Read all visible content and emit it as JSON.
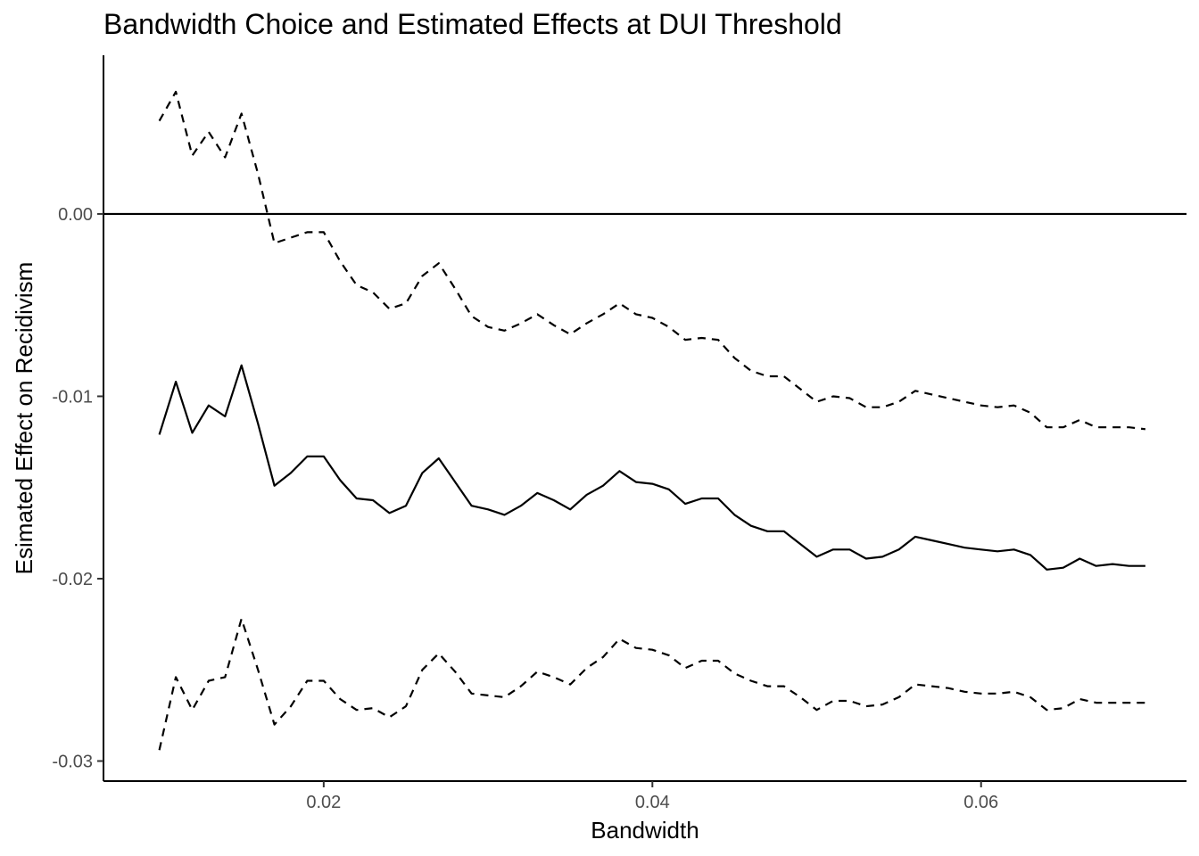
{
  "chart_data": {
    "type": "line",
    "title": "Bandwidth Choice and Estimated Effects at DUI Threshold",
    "xlabel": "Bandwidth",
    "ylabel": "Esimated Effect on Recidivism",
    "xlim": [
      0.0066,
      0.0725
    ],
    "ylim": [
      -0.0311,
      0.0087
    ],
    "x_ticks": [
      0.02,
      0.04,
      0.06
    ],
    "x_tick_labels": [
      "0.02",
      "0.04",
      "0.06"
    ],
    "y_ticks": [
      -0.03,
      -0.02,
      -0.01,
      0.0
    ],
    "y_tick_labels": [
      "-0.03",
      "-0.02",
      "-0.01",
      "0.00"
    ],
    "reference_line_y": 0,
    "grid": false,
    "x": [
      0.01,
      0.011,
      0.012,
      0.013,
      0.014,
      0.015,
      0.016,
      0.017,
      0.018,
      0.019,
      0.02,
      0.021,
      0.022,
      0.023,
      0.024,
      0.025,
      0.026,
      0.027,
      0.028,
      0.029,
      0.03,
      0.031,
      0.032,
      0.033,
      0.034,
      0.035,
      0.036,
      0.037,
      0.038,
      0.039,
      0.04,
      0.041,
      0.042,
      0.043,
      0.044,
      0.045,
      0.046,
      0.047,
      0.048,
      0.049,
      0.05,
      0.051,
      0.052,
      0.053,
      0.054,
      0.055,
      0.056,
      0.057,
      0.058,
      0.059,
      0.06,
      0.061,
      0.062,
      0.063,
      0.064,
      0.065,
      0.066,
      0.067,
      0.068,
      0.069,
      0.07
    ],
    "series": [
      {
        "style": "solid",
        "values": [
          -0.0121,
          -0.0092,
          -0.012,
          -0.0105,
          -0.0111,
          -0.0083,
          -0.0115,
          -0.0149,
          -0.0142,
          -0.0133,
          -0.0133,
          -0.0146,
          -0.0156,
          -0.0157,
          -0.0164,
          -0.016,
          -0.0142,
          -0.0134,
          -0.0147,
          -0.016,
          -0.0162,
          -0.0165,
          -0.016,
          -0.0153,
          -0.0157,
          -0.0162,
          -0.0154,
          -0.0149,
          -0.0141,
          -0.0147,
          -0.0148,
          -0.0151,
          -0.0159,
          -0.0156,
          -0.0156,
          -0.0165,
          -0.0171,
          -0.0174,
          -0.0174,
          -0.0181,
          -0.0188,
          -0.0184,
          -0.0184,
          -0.0189,
          -0.0188,
          -0.0184,
          -0.0177,
          -0.0179,
          -0.0181,
          -0.0183,
          -0.0184,
          -0.0185,
          -0.0184,
          -0.0187,
          -0.0195,
          -0.0194,
          -0.0189,
          -0.0193,
          -0.0192,
          -0.0193,
          -0.0193
        ]
      },
      {
        "style": "dashed",
        "values": [
          0.0051,
          0.0067,
          0.0032,
          0.0045,
          0.0031,
          0.0055,
          0.0022,
          -0.0016,
          -0.0013,
          -0.001,
          -0.001,
          -0.0026,
          -0.0039,
          -0.0043,
          -0.0052,
          -0.0049,
          -0.0034,
          -0.0027,
          -0.0041,
          -0.0056,
          -0.0062,
          -0.0064,
          -0.006,
          -0.0055,
          -0.0061,
          -0.0066,
          -0.006,
          -0.0055,
          -0.0049,
          -0.0055,
          -0.0057,
          -0.0062,
          -0.0069,
          -0.0068,
          -0.0069,
          -0.0079,
          -0.0086,
          -0.0089,
          -0.0089,
          -0.0096,
          -0.0103,
          -0.01,
          -0.0101,
          -0.0106,
          -0.0106,
          -0.0103,
          -0.0097,
          -0.0099,
          -0.0101,
          -0.0103,
          -0.0105,
          -0.0106,
          -0.0105,
          -0.0109,
          -0.0117,
          -0.0117,
          -0.0113,
          -0.0117,
          -0.0117,
          -0.0117,
          -0.0118
        ]
      },
      {
        "style": "dashed",
        "values": [
          -0.0294,
          -0.0254,
          -0.0272,
          -0.0256,
          -0.0254,
          -0.0222,
          -0.025,
          -0.028,
          -0.027,
          -0.0256,
          -0.0256,
          -0.0266,
          -0.0272,
          -0.0271,
          -0.0276,
          -0.027,
          -0.025,
          -0.0241,
          -0.0251,
          -0.0263,
          -0.0264,
          -0.0265,
          -0.0259,
          -0.0251,
          -0.0254,
          -0.0258,
          -0.0249,
          -0.0243,
          -0.0233,
          -0.0238,
          -0.0239,
          -0.0242,
          -0.0249,
          -0.0245,
          -0.0245,
          -0.0252,
          -0.0256,
          -0.0259,
          -0.0259,
          -0.0265,
          -0.0272,
          -0.0267,
          -0.0267,
          -0.027,
          -0.0269,
          -0.0265,
          -0.0258,
          -0.0259,
          -0.026,
          -0.0262,
          -0.0263,
          -0.0263,
          -0.0262,
          -0.0265,
          -0.0272,
          -0.0271,
          -0.0266,
          -0.0268,
          -0.0268,
          -0.0268,
          -0.0268
        ]
      }
    ]
  }
}
